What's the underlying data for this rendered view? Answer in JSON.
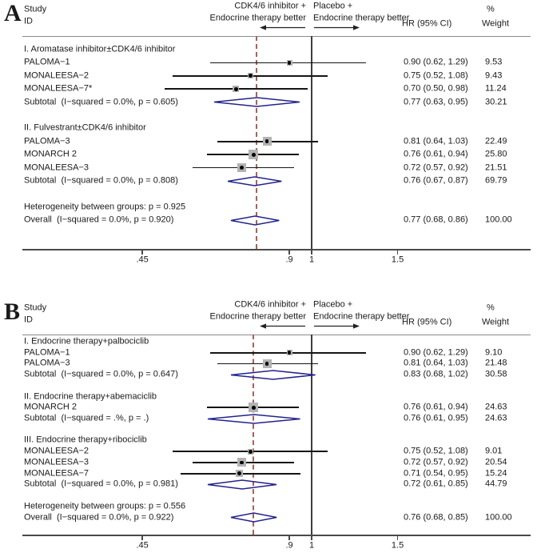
{
  "chart_data": [
    {
      "type": "forest",
      "label": "A",
      "header": {
        "study": "Study",
        "id": "ID",
        "left_favor_line1": "CDK4/6 inhibitor +",
        "left_favor_line2": "Endocrine therapy better",
        "right_favor_line1": "Placebo +",
        "right_favor_line2": "Endocrine therapy better",
        "hr_header": "HR (95% CI)",
        "percent": "%",
        "weight": "Weight"
      },
      "axis": {
        "scale": "log",
        "ticks": [
          {
            "value": 0.45,
            "label": ".45"
          },
          {
            "value": 0.9,
            "label": ".9"
          },
          {
            "value": 1,
            "label": "1"
          },
          {
            "value": 1.5,
            "label": "1.5"
          }
        ]
      },
      "null_value": 1,
      "groups": [
        {
          "heading": "I. Aromatase inhibitor±CDK4/6 inhibitor",
          "studies": [
            {
              "id": "PALOMA−1",
              "hr": 0.9,
              "lo": 0.62,
              "hi": 1.29,
              "hr_text": "0.90 (0.62, 1.29)",
              "weight": 9.53,
              "weight_text": "9.53"
            },
            {
              "id": "MONALEESA−2",
              "hr": 0.75,
              "lo": 0.52,
              "hi": 1.08,
              "hr_text": "0.75 (0.52, 1.08)",
              "weight": 9.43,
              "weight_text": "9.43"
            },
            {
              "id": "MONALEESA−7*",
              "hr": 0.7,
              "lo": 0.5,
              "hi": 0.98,
              "hr_text": "0.70 (0.50, 0.98)",
              "weight": 11.24,
              "weight_text": "11.24"
            }
          ],
          "subtotal": {
            "id": "Subtotal  (I−squared = 0.0%, p = 0.605)",
            "hr": 0.77,
            "lo": 0.63,
            "hi": 0.95,
            "hr_text": "0.77 (0.63, 0.95)",
            "weight_text": "30.21"
          }
        },
        {
          "heading": "II. Fulvestrant±CDK4/6 inhibitor",
          "studies": [
            {
              "id": "PALOMA−3",
              "hr": 0.81,
              "lo": 0.64,
              "hi": 1.03,
              "hr_text": "0.81 (0.64, 1.03)",
              "weight": 22.49,
              "weight_text": "22.49"
            },
            {
              "id": "MONARCH 2",
              "hr": 0.76,
              "lo": 0.61,
              "hi": 0.94,
              "hr_text": "0.76 (0.61, 0.94)",
              "weight": 25.8,
              "weight_text": "25.80"
            },
            {
              "id": "MONALEESA−3",
              "hr": 0.72,
              "lo": 0.57,
              "hi": 0.92,
              "hr_text": "0.72 (0.57, 0.92)",
              "weight": 21.51,
              "weight_text": "21.51"
            }
          ],
          "subtotal": {
            "id": "Subtotal  (I−squared = 0.0%, p = 0.808)",
            "hr": 0.76,
            "lo": 0.67,
            "hi": 0.87,
            "hr_text": "0.76 (0.67, 0.87)",
            "weight_text": "69.79"
          }
        }
      ],
      "heterogeneity": "Heterogeneity between groups: p = 0.925",
      "overall": {
        "id": "Overall  (I−squared = 0.0%, p = 0.920)",
        "hr": 0.77,
        "lo": 0.68,
        "hi": 0.86,
        "hr_text": "0.77 (0.68, 0.86)",
        "weight_text": "100.00"
      }
    },
    {
      "type": "forest",
      "label": "B",
      "header": {
        "study": "Study",
        "id": "ID",
        "left_favor_line1": "CDK4/6 inhibitor +",
        "left_favor_line2": "Endocrine therapy better",
        "right_favor_line1": "Placebo +",
        "right_favor_line2": "Endocrine therapy better",
        "hr_header": "HR (95% CI)",
        "percent": "%",
        "weight": "Weight"
      },
      "axis": {
        "scale": "log",
        "ticks": [
          {
            "value": 0.45,
            "label": ".45"
          },
          {
            "value": 0.9,
            "label": ".9"
          },
          {
            "value": 1,
            "label": "1"
          },
          {
            "value": 1.5,
            "label": "1.5"
          }
        ]
      },
      "null_value": 1,
      "groups": [
        {
          "heading": "I. Endocrine therapy+palbociclib",
          "studies": [
            {
              "id": "PALOMA−1",
              "hr": 0.9,
              "lo": 0.62,
              "hi": 1.29,
              "hr_text": "0.90 (0.62, 1.29)",
              "weight": 9.1,
              "weight_text": "9.10"
            },
            {
              "id": "PALOMA−3",
              "hr": 0.81,
              "lo": 0.64,
              "hi": 1.03,
              "hr_text": "0.81 (0.64, 1.03)",
              "weight": 21.48,
              "weight_text": "21.48"
            }
          ],
          "subtotal": {
            "id": "Subtotal  (I−squared = 0.0%, p = 0.647)",
            "hr": 0.83,
            "lo": 0.68,
            "hi": 1.02,
            "hr_text": "0.83 (0.68, 1.02)",
            "weight_text": "30.58"
          }
        },
        {
          "heading": "II. Endocrine therapy+abemaciclib",
          "studies": [
            {
              "id": "MONARCH 2",
              "hr": 0.76,
              "lo": 0.61,
              "hi": 0.94,
              "hr_text": "0.76 (0.61, 0.94)",
              "weight": 24.63,
              "weight_text": "24.63"
            }
          ],
          "subtotal": {
            "id": "Subtotal  (I−squared = .%, p = .)",
            "hr": 0.76,
            "lo": 0.61,
            "hi": 0.95,
            "hr_text": "0.76 (0.61, 0.95)",
            "weight_text": "24.63"
          }
        },
        {
          "heading": "III. Endocrine therapy+ribociclib",
          "studies": [
            {
              "id": "MONALEESA−2",
              "hr": 0.75,
              "lo": 0.52,
              "hi": 1.08,
              "hr_text": "0.75 (0.52, 1.08)",
              "weight": 9.01,
              "weight_text": "9.01"
            },
            {
              "id": "MONALEESA−3",
              "hr": 0.72,
              "lo": 0.57,
              "hi": 0.92,
              "hr_text": "0.72 (0.57, 0.92)",
              "weight": 20.54,
              "weight_text": "20.54"
            },
            {
              "id": "MONALEESA−7",
              "hr": 0.71,
              "lo": 0.54,
              "hi": 0.95,
              "hr_text": "0.71 (0.54, 0.95)",
              "weight": 15.24,
              "weight_text": "15.24"
            }
          ],
          "subtotal": {
            "id": "Subtotal  (I−squared = 0.0%, p = 0.981)",
            "hr": 0.72,
            "lo": 0.61,
            "hi": 0.85,
            "hr_text": "0.72 (0.61, 0.85)",
            "weight_text": "44.79"
          }
        }
      ],
      "heterogeneity": "Heterogeneity between groups: p = 0.556",
      "overall": {
        "id": "Overall  (I−squared = 0.0%, p = 0.922)",
        "hr": 0.76,
        "lo": 0.68,
        "hi": 0.85,
        "hr_text": "0.76 (0.68, 0.85)",
        "weight_text": "100.00"
      }
    }
  ],
  "colors": {
    "diamond": "#23238c",
    "dashed_overall_line": "#a5615a",
    "null_line": "#3d3d3d",
    "axis_line": "#4a4a4a",
    "ci_line": "#151515",
    "weight_square": "#b3b3b3",
    "text": "#1a1a1a"
  }
}
